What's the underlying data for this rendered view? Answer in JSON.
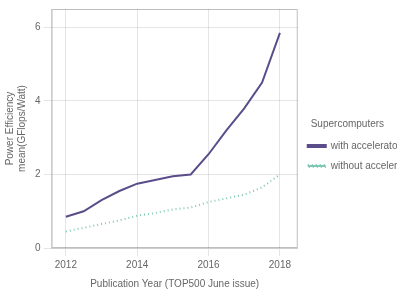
{
  "chart_data": {
    "type": "line",
    "xlabel": "Publication Year (TOP500 June issue)",
    "ylabel": [
      "Power Efficiency",
      "mean(GFlops/Watt)"
    ],
    "legend_title": "Supercomputers",
    "series": [
      {
        "name": "with accelerators",
        "color": "#5b4d8a",
        "line_style": "solid",
        "x": [
          2012,
          2012.5,
          2013,
          2013.5,
          2014,
          2014.5,
          2015,
          2015.5,
          2016,
          2016.5,
          2017,
          2017.5,
          2018
        ],
        "values": [
          0.85,
          1.0,
          1.3,
          1.55,
          1.75,
          1.85,
          1.95,
          2.0,
          2.55,
          3.2,
          3.8,
          4.5,
          5.85
        ]
      },
      {
        "name": "without accelerators",
        "color": "#7ec8b4",
        "line_style": "dotted",
        "x": [
          2012,
          2012.5,
          2013,
          2013.5,
          2014,
          2014.5,
          2015,
          2015.5,
          2016,
          2016.5,
          2017,
          2017.5,
          2018
        ],
        "values": [
          0.45,
          0.55,
          0.65,
          0.75,
          0.88,
          0.95,
          1.05,
          1.1,
          1.25,
          1.35,
          1.45,
          1.65,
          2.0
        ]
      }
    ],
    "xlim": [
      2011.6,
      2018.5
    ],
    "xticks": [
      2012,
      2014,
      2016,
      2018
    ],
    "ylim": [
      0,
      6.5
    ],
    "yticks": [
      0,
      2,
      4,
      6
    ],
    "grid": true,
    "legend": "right"
  }
}
